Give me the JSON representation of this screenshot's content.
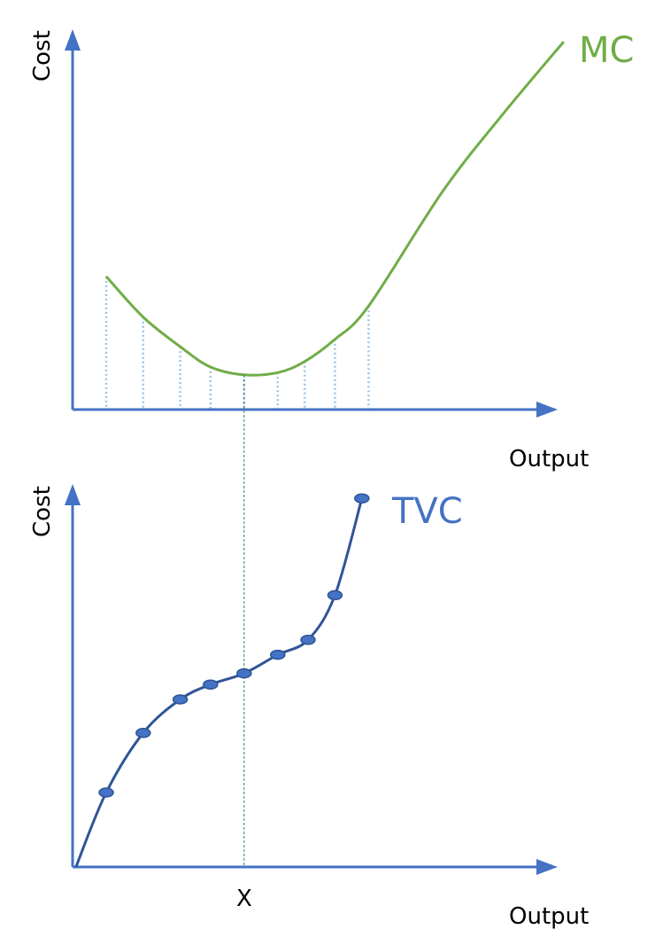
{
  "chart_data": [
    {
      "type": "line",
      "title": "",
      "xlabel": "Output",
      "ylabel": "Cost",
      "series_label": "MC",
      "color": "#70ad47",
      "xlim": [
        0,
        14
      ],
      "ylim": [
        0,
        100
      ],
      "grid": false,
      "x": [
        1.0,
        2.1,
        3.2,
        4.1,
        5.1,
        6.1,
        6.9,
        7.8,
        8.8,
        11.0,
        12.8,
        14.6
      ],
      "values": [
        36,
        25,
        17,
        11.5,
        9.4,
        10,
        13,
        19,
        28,
        59,
        80,
        99.5
      ],
      "dropline_x": [
        1.0,
        2.1,
        3.2,
        4.1,
        5.1,
        6.1,
        6.9,
        7.8,
        8.8
      ]
    },
    {
      "type": "line",
      "title": "",
      "xlabel": "Output",
      "ylabel": "Cost",
      "series_label": "TVC",
      "color": "#2f5597",
      "marker_color": "#4472c4",
      "xlim": [
        0,
        14
      ],
      "ylim": [
        0,
        100
      ],
      "grid": false,
      "x": [
        0.1,
        1.0,
        2.1,
        3.2,
        4.1,
        5.1,
        6.1,
        7.0,
        7.8,
        8.6
      ],
      "values": [
        0,
        20,
        36,
        45,
        49,
        52,
        57,
        61,
        73,
        99
      ],
      "x_marker_label": "X",
      "x_marker_value": 5.1
    }
  ],
  "axis_color": "#4472c4"
}
